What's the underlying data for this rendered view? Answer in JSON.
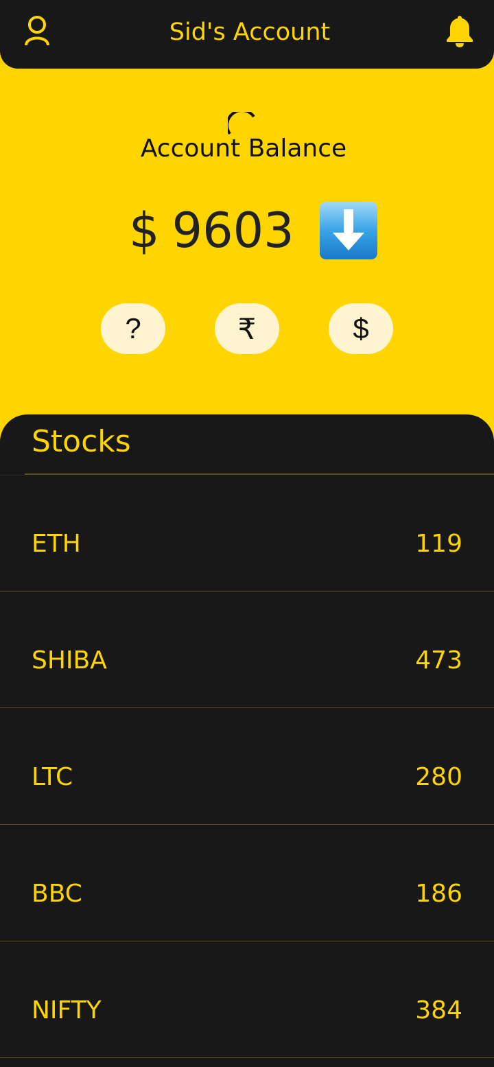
{
  "header": {
    "title": "Sid's Account",
    "accent_color": "#FFD500",
    "bar_color": "#181818",
    "left_icon": "profile-icon",
    "right_icon": "bell-icon"
  },
  "balance": {
    "label": "Account Balance",
    "currency_symbol": "$",
    "amount": "9603",
    "indicator_icon": "down-arrow-icon",
    "loading_icon": "spinner-icon"
  },
  "actions": [
    {
      "label": "?",
      "icon": "help"
    },
    {
      "label": "₹",
      "icon": "rupee"
    },
    {
      "label": "$",
      "icon": "dollar"
    }
  ],
  "stocks": {
    "title": "Stocks",
    "items": [
      {
        "name": "ETH",
        "value": "119"
      },
      {
        "name": "SHIBA",
        "value": "473"
      },
      {
        "name": "LTC",
        "value": "280"
      },
      {
        "name": "BBC",
        "value": "186"
      },
      {
        "name": "NIFTY",
        "value": "384"
      }
    ]
  }
}
